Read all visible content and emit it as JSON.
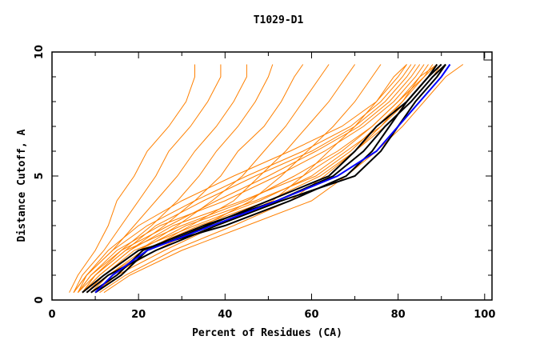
{
  "chart_data": {
    "type": "line",
    "title": "T1029-D1",
    "xlabel": "Percent of Residues (CA)",
    "ylabel": "Distance Cutoff, A",
    "xlim": [
      0,
      101.7
    ],
    "ylim": [
      0,
      10
    ],
    "xticks": [
      "0",
      "20",
      "40",
      "60",
      "80",
      "100"
    ],
    "yticks": [
      "0",
      "5",
      "10"
    ],
    "y_levels": [
      0.3,
      1,
      2,
      3,
      4,
      5,
      6,
      7,
      8,
      9,
      9.5
    ],
    "colors": {
      "orange": "#ff8000",
      "black": "#000000",
      "blue": "#0000ff"
    },
    "series": [
      {
        "name": "o1",
        "color": "orange",
        "x": [
          4,
          6,
          10,
          13,
          15,
          19,
          22,
          27,
          31,
          33,
          33
        ]
      },
      {
        "name": "o2",
        "color": "orange",
        "x": [
          5,
          7,
          12,
          16,
          20,
          24,
          27,
          32,
          36,
          39,
          39
        ]
      },
      {
        "name": "o3",
        "color": "orange",
        "x": [
          6,
          8,
          14,
          19,
          24,
          29,
          33,
          38,
          42,
          45,
          45
        ]
      },
      {
        "name": "o4",
        "color": "orange",
        "x": [
          6,
          9,
          16,
          23,
          29,
          34,
          38,
          43,
          47,
          50,
          51
        ]
      },
      {
        "name": "o5",
        "color": "orange",
        "x": [
          7,
          11,
          18,
          26,
          33,
          39,
          43,
          49,
          53,
          56,
          58
        ]
      },
      {
        "name": "o6",
        "color": "orange",
        "x": [
          8,
          12,
          20,
          29,
          37,
          44,
          49,
          54,
          58,
          62,
          64
        ]
      },
      {
        "name": "o7",
        "color": "orange",
        "x": [
          9,
          13,
          22,
          32,
          42,
          48,
          54,
          59,
          64,
          68,
          70
        ]
      },
      {
        "name": "o8",
        "color": "orange",
        "x": [
          10,
          14,
          24,
          35,
          46,
          53,
          59,
          65,
          70,
          74,
          76
        ]
      },
      {
        "name": "o9",
        "color": "orange",
        "x": [
          10,
          15,
          26,
          38,
          51,
          58,
          64,
          70,
          75,
          79,
          82
        ]
      },
      {
        "name": "o10",
        "color": "orange",
        "x": [
          11,
          17,
          28,
          42,
          55,
          63,
          70,
          76,
          81,
          85,
          89
        ]
      },
      {
        "name": "o11",
        "color": "orange",
        "x": [
          12,
          18,
          30,
          45,
          60,
          68,
          75,
          81,
          86,
          91,
          95
        ]
      },
      {
        "name": "o12",
        "color": "orange",
        "x": [
          7,
          10,
          17,
          30,
          45,
          56,
          66,
          74,
          80,
          85,
          87
        ]
      },
      {
        "name": "o13",
        "color": "orange",
        "x": [
          8,
          12,
          19,
          33,
          48,
          60,
          68,
          76,
          82,
          87,
          89
        ]
      },
      {
        "name": "o14",
        "color": "orange",
        "x": [
          6,
          9,
          15,
          25,
          40,
          52,
          63,
          72,
          79,
          84,
          86
        ]
      },
      {
        "name": "o15",
        "color": "orange",
        "x": [
          9,
          13,
          21,
          34,
          50,
          62,
          70,
          77,
          83,
          88,
          90
        ]
      },
      {
        "name": "o16",
        "color": "orange",
        "x": [
          5,
          8,
          13,
          20,
          30,
          42,
          55,
          67,
          75,
          80,
          82
        ]
      },
      {
        "name": "o17",
        "color": "orange",
        "x": [
          7,
          11,
          18,
          28,
          44,
          58,
          67,
          74,
          80,
          86,
          88
        ]
      },
      {
        "name": "o18",
        "color": "orange",
        "x": [
          6,
          10,
          17,
          24,
          35,
          47,
          60,
          70,
          77,
          82,
          84
        ]
      },
      {
        "name": "o19",
        "color": "orange",
        "x": [
          8,
          12,
          20,
          31,
          47,
          61,
          69,
          75,
          81,
          86,
          89
        ]
      },
      {
        "name": "o20",
        "color": "orange",
        "x": [
          5,
          8,
          14,
          22,
          33,
          45,
          58,
          69,
          76,
          81,
          83
        ]
      },
      {
        "name": "o21",
        "color": "orange",
        "x": [
          7,
          10,
          16,
          27,
          38,
          50,
          61,
          71,
          78,
          83,
          85
        ]
      },
      {
        "name": "black1",
        "color": "black",
        "x": [
          7,
          12,
          20,
          40,
          55,
          68,
          74,
          78,
          82,
          87,
          89
        ]
      },
      {
        "name": "black2",
        "color": "black",
        "x": [
          9,
          15,
          21,
          35,
          52,
          65,
          72,
          77,
          83,
          88,
          91
        ]
      },
      {
        "name": "black3",
        "color": "black",
        "x": [
          8,
          13,
          24,
          38,
          53,
          70,
          76,
          80,
          84,
          89,
          91
        ]
      },
      {
        "name": "black4",
        "color": "black",
        "x": [
          10,
          16,
          22,
          36,
          50,
          64,
          70,
          75,
          82,
          87,
          90
        ]
      },
      {
        "name": "blue",
        "color": "blue",
        "x": [
          10,
          14,
          22,
          37,
          52,
          66,
          75,
          80,
          85,
          90,
          92
        ]
      }
    ]
  }
}
